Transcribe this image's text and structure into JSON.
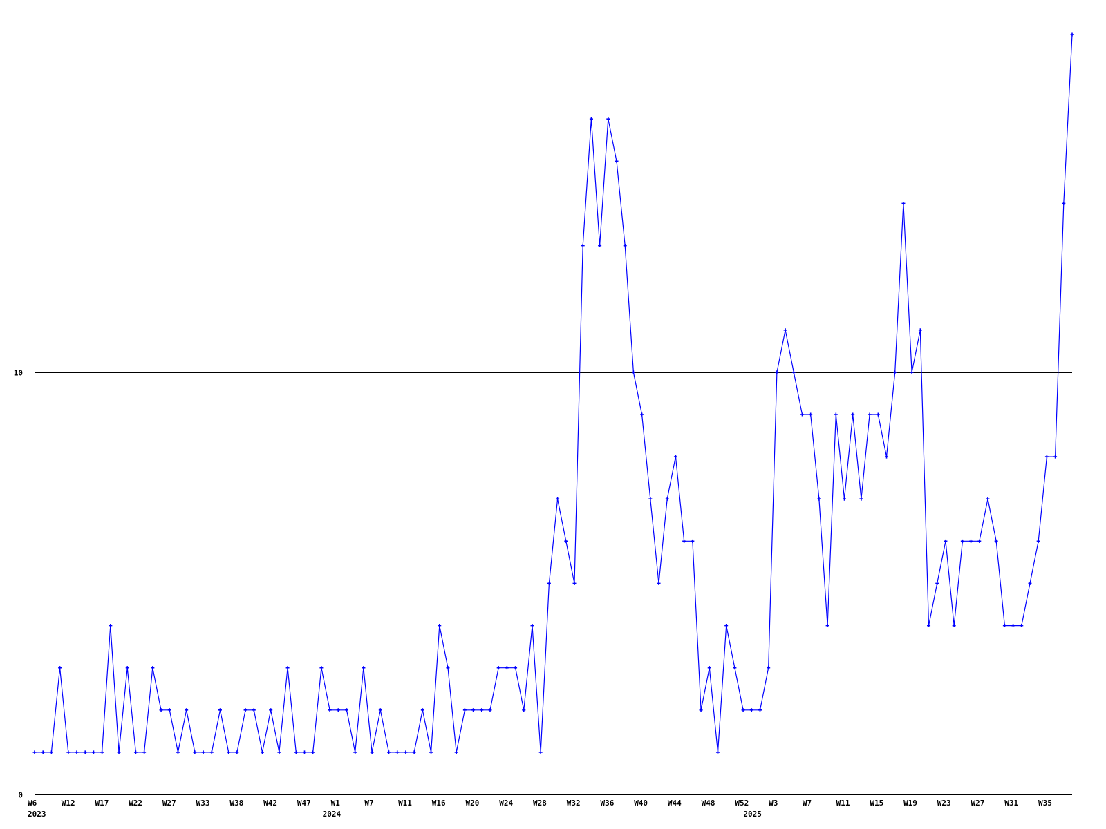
{
  "chart_data": {
    "type": "line",
    "title": "",
    "xlabel": "",
    "ylabel": "",
    "ylim": [
      0,
      18
    ],
    "y_ticks": [
      {
        "value": 0,
        "label": "0"
      },
      {
        "value": 10,
        "label": "10"
      }
    ],
    "grid": "horizontal line at 10",
    "x_tick_labels": [
      "W6",
      "W12",
      "W17",
      "W22",
      "W27",
      "W33",
      "W38",
      "W42",
      "W47",
      "W1",
      "W7",
      "W11",
      "W16",
      "W20",
      "W24",
      "W28",
      "W32",
      "W36",
      "W40",
      "W44",
      "W48",
      "W52",
      "W3",
      "W7",
      "W11",
      "W15",
      "W19",
      "W23",
      "W27",
      "W31",
      "W35"
    ],
    "year_labels": [
      {
        "label": "2023",
        "under_tick": "W6"
      },
      {
        "label": "2024",
        "under_tick": "W1"
      },
      {
        "label": "2025",
        "under_tick": "W52"
      }
    ],
    "series": [
      {
        "color": "#0000ff",
        "values": [
          1,
          1,
          1,
          3,
          1,
          1,
          1,
          1,
          1,
          4,
          1,
          3,
          1,
          1,
          3,
          2,
          2,
          1,
          2,
          1,
          1,
          1,
          2,
          1,
          1,
          2,
          2,
          1,
          2,
          1,
          3,
          1,
          1,
          1,
          3,
          2,
          2,
          2,
          1,
          3,
          1,
          2,
          1,
          1,
          1,
          1,
          2,
          1,
          4,
          3,
          1,
          2,
          2,
          2,
          2,
          3,
          3,
          3,
          2,
          4,
          1,
          5,
          7,
          6,
          5,
          13,
          16,
          13,
          16,
          15,
          13,
          10,
          9,
          7,
          5,
          7,
          8,
          6,
          6,
          2,
          3,
          1,
          4,
          3,
          2,
          2,
          2,
          3,
          10,
          11,
          10,
          9,
          9,
          7,
          4,
          9,
          7,
          9,
          7,
          9,
          9,
          8,
          10,
          14,
          10,
          11,
          4,
          5,
          6,
          4,
          6,
          6,
          6,
          7,
          6,
          4,
          4,
          4,
          5,
          6,
          8,
          8,
          14,
          18
        ]
      }
    ]
  }
}
